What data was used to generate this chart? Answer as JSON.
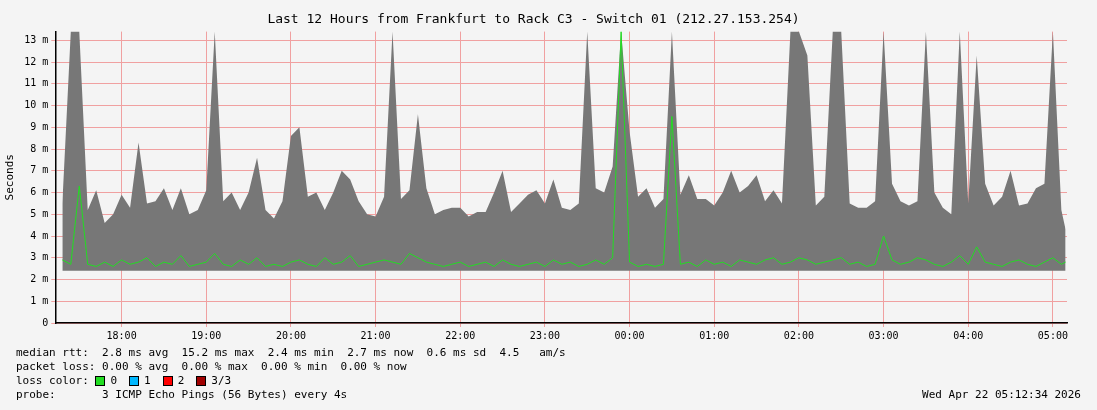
{
  "chart_data": {
    "type": "line",
    "title": "Last 12 Hours from Frankfurt to Rack C3 - Switch 01 (212.27.153.254)",
    "ylabel": "Seconds",
    "x": [
      "2026-04-21T17:18",
      "2026-04-21T17:24",
      "2026-04-21T17:30",
      "2026-04-21T17:36",
      "2026-04-21T17:42",
      "2026-04-21T17:48",
      "2026-04-21T17:54",
      "2026-04-21T18:00",
      "2026-04-21T18:06",
      "2026-04-21T18:12",
      "2026-04-21T18:18",
      "2026-04-21T18:24",
      "2026-04-21T18:30",
      "2026-04-21T18:36",
      "2026-04-21T18:42",
      "2026-04-21T18:48",
      "2026-04-21T18:54",
      "2026-04-21T19:00",
      "2026-04-21T19:06",
      "2026-04-21T19:12",
      "2026-04-21T19:18",
      "2026-04-21T19:24",
      "2026-04-21T19:30",
      "2026-04-21T19:36",
      "2026-04-21T19:42",
      "2026-04-21T19:48",
      "2026-04-21T19:54",
      "2026-04-21T20:00",
      "2026-04-21T20:06",
      "2026-04-21T20:12",
      "2026-04-21T20:18",
      "2026-04-21T20:24",
      "2026-04-21T20:30",
      "2026-04-21T20:36",
      "2026-04-21T20:42",
      "2026-04-21T20:48",
      "2026-04-21T20:54",
      "2026-04-21T21:00",
      "2026-04-21T21:06",
      "2026-04-21T21:12",
      "2026-04-21T21:18",
      "2026-04-21T21:24",
      "2026-04-21T21:30",
      "2026-04-21T21:36",
      "2026-04-21T21:42",
      "2026-04-21T21:48",
      "2026-04-21T21:54",
      "2026-04-21T22:00",
      "2026-04-21T22:06",
      "2026-04-21T22:12",
      "2026-04-21T22:18",
      "2026-04-21T22:24",
      "2026-04-21T22:30",
      "2026-04-21T22:36",
      "2026-04-21T22:42",
      "2026-04-21T22:48",
      "2026-04-21T22:54",
      "2026-04-21T23:00",
      "2026-04-21T23:06",
      "2026-04-21T23:12",
      "2026-04-21T23:18",
      "2026-04-21T23:24",
      "2026-04-21T23:30",
      "2026-04-21T23:36",
      "2026-04-21T23:42",
      "2026-04-21T23:48",
      "2026-04-21T23:54",
      "2026-04-22T00:00",
      "2026-04-22T00:06",
      "2026-04-22T00:12",
      "2026-04-22T00:18",
      "2026-04-22T00:24",
      "2026-04-22T00:30",
      "2026-04-22T00:36",
      "2026-04-22T00:42",
      "2026-04-22T00:48",
      "2026-04-22T00:54",
      "2026-04-22T01:00",
      "2026-04-22T01:06",
      "2026-04-22T01:12",
      "2026-04-22T01:18",
      "2026-04-22T01:24",
      "2026-04-22T01:30",
      "2026-04-22T01:36",
      "2026-04-22T01:42",
      "2026-04-22T01:48",
      "2026-04-22T01:54",
      "2026-04-22T02:00",
      "2026-04-22T02:06",
      "2026-04-22T02:12",
      "2026-04-22T02:18",
      "2026-04-22T02:24",
      "2026-04-22T02:30",
      "2026-04-22T02:36",
      "2026-04-22T02:42",
      "2026-04-22T02:48",
      "2026-04-22T02:54",
      "2026-04-22T03:00",
      "2026-04-22T03:06",
      "2026-04-22T03:12",
      "2026-04-22T03:18",
      "2026-04-22T03:24",
      "2026-04-22T03:30",
      "2026-04-22T03:36",
      "2026-04-22T03:42",
      "2026-04-22T03:48",
      "2026-04-22T03:54",
      "2026-04-22T04:00",
      "2026-04-22T04:06",
      "2026-04-22T04:12",
      "2026-04-22T04:18",
      "2026-04-22T04:24",
      "2026-04-22T04:30",
      "2026-04-22T04:36",
      "2026-04-22T04:42",
      "2026-04-22T04:48",
      "2026-04-22T04:54",
      "2026-04-22T05:00",
      "2026-04-22T05:06",
      "2026-04-22T05:09"
    ],
    "series": [
      {
        "name": "0",
        "color": "#22dd22",
        "values": [
          2.9,
          2.7,
          6.3,
          2.7,
          2.6,
          2.8,
          2.6,
          2.9,
          2.7,
          2.8,
          3.0,
          2.6,
          2.8,
          2.7,
          3.1,
          2.6,
          2.7,
          2.8,
          3.2,
          2.7,
          2.6,
          2.9,
          2.7,
          3.0,
          2.6,
          2.7,
          2.6,
          2.8,
          2.9,
          2.7,
          2.6,
          3.0,
          2.7,
          2.8,
          3.1,
          2.6,
          2.7,
          2.8,
          2.9,
          2.8,
          2.7,
          3.2,
          3.0,
          2.8,
          2.7,
          2.6,
          2.7,
          2.8,
          2.6,
          2.7,
          2.8,
          2.6,
          2.9,
          2.7,
          2.6,
          2.7,
          2.8,
          2.6,
          2.9,
          2.7,
          2.8,
          2.6,
          2.7,
          2.9,
          2.7,
          3.0,
          13.4,
          2.8,
          2.6,
          2.7,
          2.6,
          2.7,
          9.5,
          2.7,
          2.8,
          2.6,
          2.9,
          2.7,
          2.8,
          2.6,
          2.9,
          2.8,
          2.7,
          2.9,
          3.0,
          2.7,
          2.8,
          3.0,
          2.9,
          2.7,
          2.8,
          2.9,
          3.0,
          2.7,
          2.8,
          2.6,
          2.7,
          4.0,
          2.9,
          2.7,
          2.8,
          3.0,
          2.9,
          2.7,
          2.6,
          2.8,
          3.1,
          2.7,
          3.5,
          2.8,
          2.7,
          2.6,
          2.8,
          2.9,
          2.7,
          2.6,
          2.8,
          3.0,
          2.7,
          2.8
        ],
        "lower": [
          2.4,
          2.4,
          2.4,
          2.4,
          2.4,
          2.4,
          2.4,
          2.4,
          2.4,
          2.4,
          2.4,
          2.4,
          2.4,
          2.4,
          2.4,
          2.4,
          2.4,
          2.4,
          2.4,
          2.4,
          2.4,
          2.4,
          2.4,
          2.4,
          2.4,
          2.4,
          2.4,
          2.4,
          2.4,
          2.4,
          2.4,
          2.4,
          2.4,
          2.4,
          2.4,
          2.4,
          2.4,
          2.4,
          2.4,
          2.4,
          2.4,
          2.4,
          2.4,
          2.4,
          2.4,
          2.4,
          2.4,
          2.4,
          2.4,
          2.4,
          2.4,
          2.4,
          2.4,
          2.4,
          2.4,
          2.4,
          2.4,
          2.4,
          2.4,
          2.4,
          2.4,
          2.4,
          2.4,
          2.4,
          2.4,
          2.4,
          2.4,
          2.4,
          2.4,
          2.4,
          2.4,
          2.4,
          2.4,
          2.4,
          2.4,
          2.4,
          2.4,
          2.4,
          2.4,
          2.4,
          2.4,
          2.4,
          2.4,
          2.4,
          2.4,
          2.4,
          2.4,
          2.4,
          2.4,
          2.4,
          2.4,
          2.4,
          2.4,
          2.4,
          2.4,
          2.4,
          2.4,
          2.4,
          2.4,
          2.4,
          2.4,
          2.4,
          2.4,
          2.4,
          2.4,
          2.4,
          2.4,
          2.4,
          2.4,
          2.4,
          2.4,
          2.4,
          2.4,
          2.4,
          2.4,
          2.4,
          2.4,
          2.4,
          2.4,
          2.4
        ],
        "upper": [
          5.5,
          13.4,
          13.4,
          5.2,
          6.1,
          4.6,
          5.0,
          5.9,
          5.3,
          8.3,
          5.5,
          5.6,
          6.2,
          5.2,
          6.2,
          5.0,
          5.2,
          6.1,
          13.4,
          5.6,
          6.0,
          5.2,
          6.0,
          7.6,
          5.2,
          4.8,
          5.6,
          8.6,
          9.0,
          5.8,
          6.0,
          5.2,
          6.0,
          7.0,
          6.6,
          5.6,
          5.0,
          4.9,
          5.8,
          13.4,
          5.7,
          6.1,
          9.6,
          6.2,
          5.0,
          5.2,
          5.3,
          5.3,
          4.9,
          5.1,
          5.1,
          6.0,
          7.0,
          5.1,
          5.5,
          5.9,
          6.1,
          5.5,
          6.6,
          5.3,
          5.2,
          5.5,
          13.4,
          6.2,
          6.0,
          7.2,
          13.4,
          8.8,
          5.8,
          6.2,
          5.3,
          5.7,
          13.4,
          5.9,
          6.8,
          5.7,
          5.7,
          5.4,
          6.0,
          7.0,
          6.0,
          6.3,
          6.8,
          5.6,
          6.1,
          5.5,
          13.4,
          13.4,
          12.3,
          5.4,
          5.8,
          13.4,
          13.4,
          5.5,
          5.3,
          5.3,
          5.6,
          13.4,
          6.4,
          5.6,
          5.4,
          5.6,
          13.4,
          6.0,
          5.3,
          5.0,
          13.4,
          5.5,
          12.3,
          6.4,
          5.4,
          5.8,
          7.0,
          5.4,
          5.5,
          6.2,
          6.4,
          13.4,
          5.2,
          4.3
        ]
      },
      {
        "name": "1",
        "color": "#00b8ff",
        "values": [
          null,
          null,
          null,
          null,
          null,
          null,
          null,
          null,
          null,
          null,
          null,
          null,
          null,
          null,
          null,
          null,
          null,
          null,
          null,
          null,
          null,
          null,
          null,
          null,
          null,
          null,
          null,
          null,
          null,
          null,
          null,
          null,
          null,
          null,
          null,
          null,
          null,
          null,
          null,
          null,
          null,
          null,
          null,
          null,
          null,
          null,
          null,
          null,
          null,
          null,
          null,
          null,
          null,
          null,
          null,
          null,
          null,
          null,
          null,
          null,
          null,
          null,
          null,
          null,
          null,
          null,
          null,
          null,
          null,
          null,
          null,
          null,
          null,
          null,
          null,
          null,
          null,
          null,
          null,
          null,
          null,
          null,
          null,
          null,
          null,
          null,
          null,
          null,
          null,
          null,
          null,
          null,
          null,
          null,
          null,
          null,
          null,
          null,
          null,
          null,
          null,
          null,
          null,
          null,
          null,
          null,
          null,
          null,
          null,
          null,
          null,
          null,
          null,
          null,
          null,
          null,
          null,
          null,
          null,
          null
        ]
      },
      {
        "name": "2",
        "color": "#ff0000",
        "values": [
          null,
          null,
          null,
          null,
          null,
          null,
          null,
          null,
          null,
          null,
          null,
          null,
          null,
          null,
          null,
          null,
          null,
          null,
          null,
          null,
          null,
          null,
          null,
          null,
          null,
          null,
          null,
          null,
          null,
          null,
          null,
          null,
          null,
          null,
          null,
          null,
          null,
          null,
          null,
          null,
          null,
          null,
          null,
          null,
          null,
          null,
          null,
          null,
          null,
          null,
          null,
          null,
          null,
          null,
          null,
          null,
          null,
          null,
          null,
          null,
          null,
          null,
          null,
          null,
          null,
          null,
          null,
          null,
          null,
          null,
          null,
          null,
          null,
          null,
          null,
          null,
          null,
          null,
          null,
          null,
          null,
          null,
          null,
          null,
          null,
          null,
          null,
          null,
          null,
          null,
          null,
          null,
          null,
          null,
          null,
          null,
          null,
          null,
          null,
          null,
          null,
          null,
          null,
          null,
          null,
          null,
          null,
          null,
          null,
          null,
          null,
          null,
          null,
          null,
          null,
          null,
          null,
          null,
          null,
          null
        ]
      },
      {
        "name": "3/3",
        "color": "#a00000",
        "values": [
          null,
          null,
          null,
          null,
          null,
          null,
          null,
          null,
          null,
          null,
          null,
          null,
          null,
          null,
          null,
          null,
          null,
          null,
          null,
          null,
          null,
          null,
          null,
          null,
          null,
          null,
          null,
          null,
          null,
          null,
          null,
          null,
          null,
          null,
          null,
          null,
          null,
          null,
          null,
          null,
          null,
          null,
          null,
          null,
          null,
          null,
          null,
          null,
          null,
          null,
          null,
          null,
          null,
          null,
          null,
          null,
          null,
          null,
          null,
          null,
          null,
          null,
          null,
          null,
          null,
          null,
          null,
          null,
          null,
          null,
          null,
          null,
          null,
          null,
          null,
          null,
          null,
          null,
          null,
          null,
          null,
          null,
          null,
          null,
          null,
          null,
          null,
          null,
          null,
          null,
          null,
          null,
          null,
          null,
          null,
          null,
          null,
          null,
          null,
          null,
          null,
          null,
          null,
          null,
          null,
          null,
          null,
          null,
          null,
          null,
          null,
          null,
          null,
          null,
          null,
          null,
          null,
          null,
          null,
          null
        ]
      }
    ],
    "xlim": [
      "2026-04-21T17:13",
      "2026-04-22T05:10"
    ],
    "xticks": [
      {
        "value": "2026-04-21T18:00",
        "label": "18:00"
      },
      {
        "value": "2026-04-21T19:00",
        "label": "19:00"
      },
      {
        "value": "2026-04-21T20:00",
        "label": "20:00"
      },
      {
        "value": "2026-04-21T21:00",
        "label": "21:00"
      },
      {
        "value": "2026-04-21T22:00",
        "label": "22:00"
      },
      {
        "value": "2026-04-21T23:00",
        "label": "23:00"
      },
      {
        "value": "2026-04-22T00:00",
        "label": "00:00"
      },
      {
        "value": "2026-04-22T01:00",
        "label": "01:00"
      },
      {
        "value": "2026-04-22T02:00",
        "label": "02:00"
      },
      {
        "value": "2026-04-22T03:00",
        "label": "03:00"
      },
      {
        "value": "2026-04-22T04:00",
        "label": "04:00"
      },
      {
        "value": "2026-04-22T05:00",
        "label": "05:00"
      }
    ],
    "ylim": [
      0,
      13.4
    ],
    "yticks": [
      0,
      {
        "value": 1,
        "label": "1 m"
      },
      {
        "value": 2,
        "label": "2 m"
      },
      {
        "value": 3,
        "label": "3 m"
      },
      {
        "value": 4,
        "label": "4 m"
      },
      {
        "value": 5,
        "label": "5 m"
      },
      {
        "value": 6,
        "label": "6 m"
      },
      {
        "value": 7,
        "label": "7 m"
      },
      {
        "value": 8,
        "label": "8 m"
      },
      {
        "value": 9,
        "label": "9 m"
      },
      {
        "value": 10,
        "label": "10 m"
      },
      {
        "value": 11,
        "label": "11 m"
      },
      {
        "value": 12,
        "label": "12 m"
      },
      {
        "value": 13,
        "label": "13 m"
      }
    ],
    "grid": true,
    "legend": "bottom left",
    "legend_title": "loss color:",
    "annotations": [
      "median rtt:  2.8 ms avg  15.2 ms max  2.4 ms min  2.7 ms now  0.6 ms sd  4.5   am/s",
      "packet loss: 0.00 % avg  0.00 % max  0.00 % min  0.00 % now",
      "probe:       3 ICMP Echo Pings (56 Bytes) every 4s",
      "Wed Apr 22 05:12:34 2026"
    ]
  }
}
